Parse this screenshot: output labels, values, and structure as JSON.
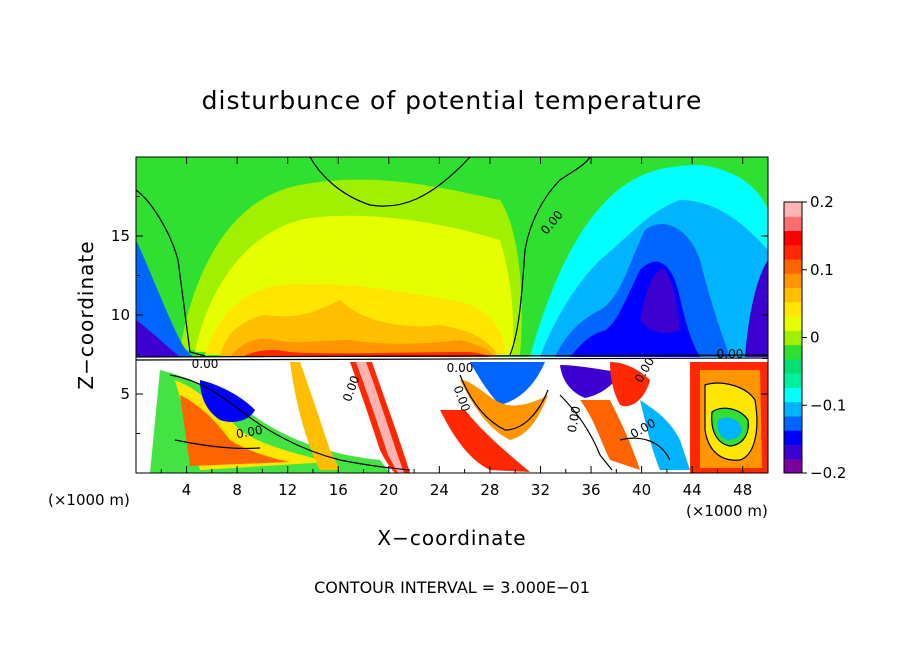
{
  "chart_data": {
    "type": "heatmap",
    "title": "disturbunce of potential temperature",
    "xlabel": "X−coordinate",
    "ylabel": "Z−coordinate",
    "x_unit_left": "(×1000 m)",
    "x_unit_right": "(×1000 m)",
    "contour_interval_text": "CONTOUR INTERVAL = 3.000E−01",
    "xlim": [
      0,
      50
    ],
    "ylim": [
      0,
      20
    ],
    "x_ticks": [
      "4",
      "8",
      "12",
      "16",
      "20",
      "24",
      "28",
      "32",
      "36",
      "40",
      "44",
      "48"
    ],
    "y_ticks": [
      "5",
      "10",
      "15"
    ],
    "colorbar": {
      "range": [
        -0.2,
        0.2
      ],
      "tick_labels": [
        "0.2",
        "0.1",
        "0",
        "−0.1",
        "−0.2"
      ],
      "tick_values": [
        0.2,
        0.1,
        0,
        -0.1,
        -0.2
      ],
      "colors": [
        "#7a00a0",
        "#3c00d0",
        "#0000ff",
        "#0066ff",
        "#00b4ff",
        "#00ffff",
        "#00f0a0",
        "#00e070",
        "#30e030",
        "#a0f000",
        "#e6ff00",
        "#ffe600",
        "#ffbe00",
        "#ff9600",
        "#ff6400",
        "#ff2800",
        "#ff0000",
        "#ff6e6e",
        "#ffb4b4"
      ]
    },
    "contour_labels": [
      "0.00",
      "0.00",
      "0.00",
      "0.00",
      "0.00",
      "0.00",
      "0.00",
      "0.00",
      "0.00",
      "0.00"
    ],
    "field_description": "2-D field of potential temperature disturbance over x (0-50 ×1000 m) and z (0-20); upper layer mostly positive (yellow/orange) between x≈5-31, negative (blue) near x≈33-45; turbulent mixed layer below z≈7.5"
  }
}
